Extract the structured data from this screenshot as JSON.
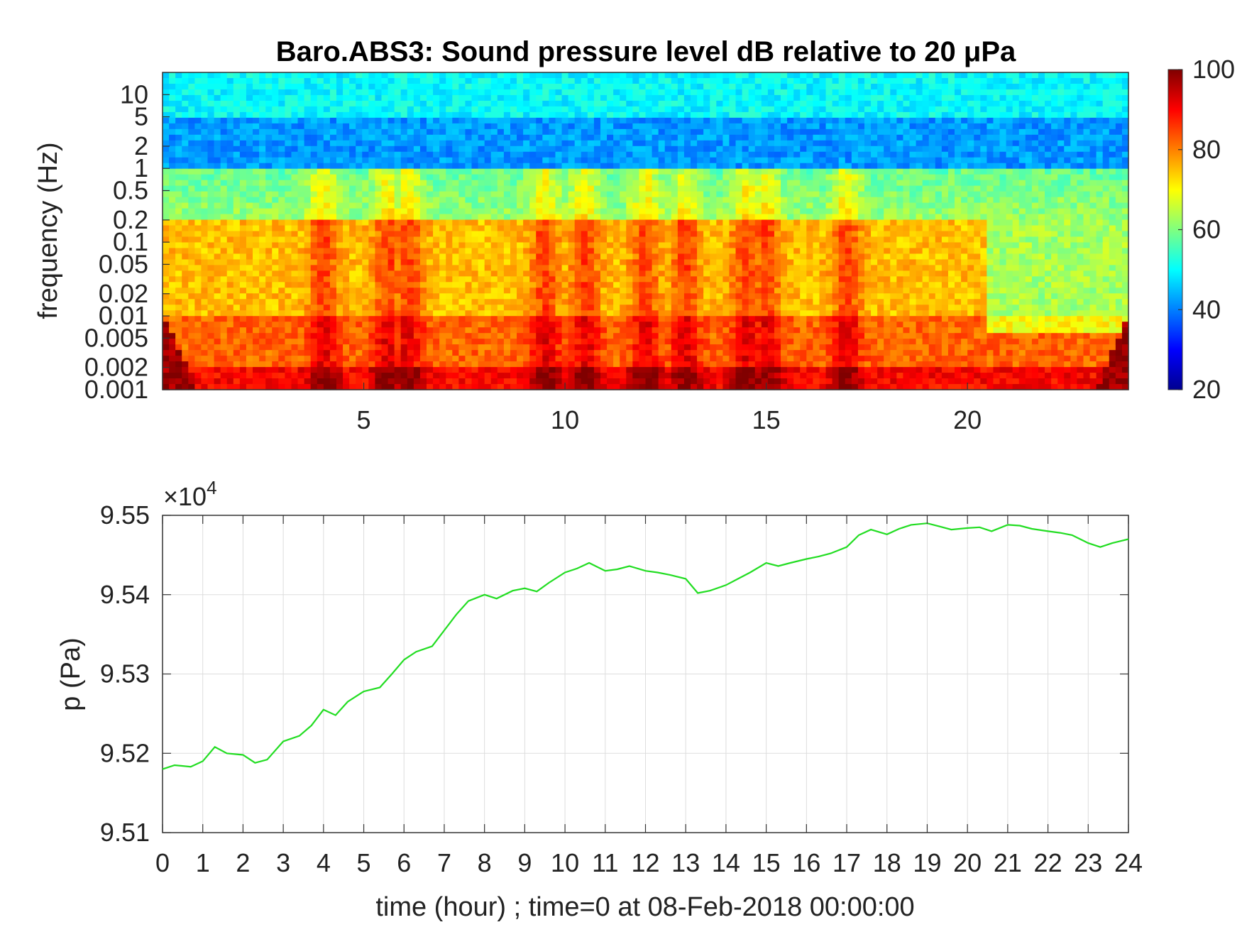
{
  "chart_data": [
    {
      "type": "heatmap",
      "title": "Baro.ABS3: Sound pressure level dB relative to 20 μPa",
      "ylabel": "frequency (Hz)",
      "xlabel": "",
      "x_range_hours": [
        0,
        24
      ],
      "x_ticks": [
        5,
        10,
        15,
        20
      ],
      "y_scale": "log",
      "y_range_hz": [
        0.001,
        20
      ],
      "y_ticks": [
        10,
        5,
        2,
        1,
        0.5,
        0.2,
        0.1,
        0.05,
        0.02,
        0.01,
        0.005,
        0.002,
        0.001
      ],
      "y_tick_labels": [
        "10",
        "5",
        "2",
        "1",
        "0.5",
        "0.2",
        "0.1",
        "0.05",
        "0.02",
        "0.01",
        "0.005",
        "0.002",
        "0.001"
      ],
      "colormap": "jet",
      "colorbar": {
        "range_db": [
          20,
          100
        ],
        "ticks": [
          100,
          80,
          60,
          40,
          20
        ],
        "tick_labels": [
          "100",
          "80",
          "60",
          "40",
          "20"
        ]
      },
      "band_levels_db": {
        "above_5hz": 50,
        "1_to_5hz": 42,
        "0.2_to_1hz": 62,
        "0.01_to_0.2hz": 75,
        "0.002_to_0.01hz": 82,
        "below_0.002hz": 90
      },
      "hot_time_hours": [
        4,
        5.6,
        6.1,
        9.5,
        10.5,
        12,
        13,
        14.5,
        15,
        17
      ],
      "quiet_after_hour": 20.5
    },
    {
      "type": "line",
      "title": "",
      "xlabel": "time (hour) ; time=0 at 08-Feb-2018 00:00:00",
      "ylabel": "p (Pa)",
      "y_multiplier_label": "×10",
      "y_multiplier_exponent": "4",
      "xlim": [
        0,
        24
      ],
      "ylim": [
        95100,
        95500
      ],
      "x_ticks": [
        0,
        1,
        2,
        3,
        4,
        5,
        6,
        7,
        8,
        9,
        10,
        11,
        12,
        13,
        14,
        15,
        16,
        17,
        18,
        19,
        20,
        21,
        22,
        23,
        24
      ],
      "x_tick_labels": [
        "0",
        "1",
        "2",
        "3",
        "4",
        "5",
        "6",
        "7",
        "8",
        "9",
        "10",
        "11",
        "12",
        "13",
        "14",
        "15",
        "16",
        "17",
        "18",
        "19",
        "20",
        "21",
        "22",
        "23",
        "24"
      ],
      "y_ticks": [
        95100,
        95200,
        95300,
        95400,
        95500
      ],
      "y_tick_labels": [
        "9.51",
        "9.52",
        "9.53",
        "9.54",
        "9.55"
      ],
      "grid": true,
      "color": "#22dd22",
      "series": [
        {
          "x": [
            0,
            0.3,
            0.7,
            1.0,
            1.3,
            1.6,
            2.0,
            2.3,
            2.6,
            3.0,
            3.4,
            3.7,
            4.0,
            4.3,
            4.6,
            5.0,
            5.4,
            5.7,
            6.0,
            6.3,
            6.7,
            7.0,
            7.3,
            7.6,
            8.0,
            8.3,
            8.7,
            9.0,
            9.3,
            9.6,
            10.0,
            10.3,
            10.6,
            11.0,
            11.3,
            11.6,
            12.0,
            12.3,
            12.6,
            13.0,
            13.3,
            13.6,
            14.0,
            14.3,
            14.6,
            15.0,
            15.3,
            15.6,
            16.0,
            16.3,
            16.6,
            17.0,
            17.3,
            17.6,
            18.0,
            18.3,
            18.6,
            19.0,
            19.3,
            19.6,
            20.0,
            20.3,
            20.6,
            21.0,
            21.3,
            21.6,
            22.0,
            22.3,
            22.6,
            23.0,
            23.3,
            23.6,
            24.0
          ],
          "y": [
            95180,
            95185,
            95183,
            95190,
            95208,
            95200,
            95198,
            95188,
            95192,
            95215,
            95222,
            95235,
            95255,
            95248,
            95265,
            95278,
            95283,
            95300,
            95318,
            95328,
            95335,
            95355,
            95375,
            95392,
            95400,
            95395,
            95405,
            95408,
            95404,
            95415,
            95428,
            95433,
            95440,
            95430,
            95432,
            95436,
            95430,
            95428,
            95425,
            95420,
            95402,
            95405,
            95412,
            95420,
            95428,
            95440,
            95436,
            95440,
            95445,
            95448,
            95452,
            95460,
            95475,
            95482,
            95476,
            95483,
            95488,
            95490,
            95486,
            95482,
            95484,
            95485,
            95480,
            95488,
            95487,
            95483,
            95480,
            95478,
            95475,
            95465,
            95460,
            95465,
            95470
          ]
        }
      ]
    }
  ]
}
